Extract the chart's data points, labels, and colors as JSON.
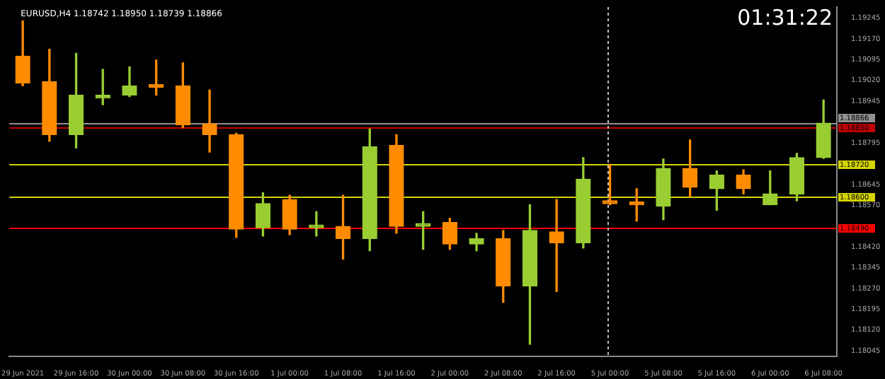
{
  "chart_data": {
    "type": "candlestick",
    "title": "EURUSD,H4 1.18742 1.18950 1.18739 1.18866",
    "annotations": [
      "01:31:22"
    ],
    "categories": [
      "29 Jun 2021",
      null,
      "29 Jun 16:00",
      null,
      "30 Jun 00:00",
      null,
      "30 Jun 08:00",
      null,
      "30 Jun 16:00",
      null,
      "1 Jul 00:00",
      null,
      "1 Jul 08:00",
      null,
      "1 Jul 16:00",
      null,
      "2 Jul 00:00",
      null,
      "2 Jul 08:00",
      null,
      "2 Jul 16:00",
      null,
      "5 Jul 00:00",
      null,
      "5 Jul 08:00",
      null,
      "5 Jul 16:00",
      null,
      "6 Jul 00:00",
      null,
      "6 Jul 08:00"
    ],
    "ohlc": [
      [
        1.19108,
        1.19235,
        1.19001,
        1.19011
      ],
      [
        1.19016,
        1.19133,
        1.18801,
        1.18825
      ],
      [
        1.18825,
        1.19118,
        1.18777,
        1.18967
      ],
      [
        1.18957,
        1.1906,
        1.18933,
        1.18967
      ],
      [
        1.18967,
        1.19069,
        1.18962,
        1.19001
      ],
      [
        1.19001,
        1.19094,
        1.18967,
        1.18996
      ],
      [
        1.19001,
        1.19084,
        1.1885,
        1.1886
      ],
      [
        1.18864,
        1.18986,
        1.18762,
        1.18825
      ],
      [
        1.18825,
        1.1883,
        1.18454,
        1.18484
      ],
      [
        1.18489,
        1.18615,
        1.18459,
        1.18576
      ],
      [
        1.18591,
        1.18606,
        1.18464,
        1.18484
      ],
      [
        1.18489,
        1.18547,
        1.18459,
        1.18494
      ],
      [
        1.18494,
        1.18606,
        1.18376,
        1.1845
      ],
      [
        1.1845,
        1.18845,
        1.18406,
        1.18781
      ],
      [
        1.18786,
        1.18825,
        1.18469,
        1.18494
      ],
      [
        1.18494,
        1.18547,
        1.18411,
        1.18498
      ],
      [
        1.18508,
        1.18523,
        1.18411,
        1.1843
      ],
      [
        1.1843,
        1.18469,
        1.18406,
        1.1845
      ],
      [
        1.1845,
        1.18479,
        1.1822,
        1.18279
      ],
      [
        1.18279,
        1.18572,
        1.18069,
        1.18479
      ],
      [
        1.18474,
        1.18591,
        1.18259,
        1.18435
      ],
      [
        1.18435,
        1.18742,
        1.18416,
        1.18664
      ],
      [
        1.18581,
        1.18718,
        1.18572,
        1.18576
      ],
      [
        1.18576,
        1.1863,
        1.18513,
        1.18572
      ],
      [
        1.18567,
        1.18737,
        1.18518,
        1.18703
      ],
      [
        1.18703,
        1.18806,
        1.18601,
        1.18635
      ],
      [
        1.1863,
        1.18694,
        1.18552,
        1.18679
      ],
      [
        1.18679,
        1.18698,
        1.18611,
        1.1863
      ],
      [
        1.18572,
        1.18694,
        1.18572,
        1.18611
      ],
      [
        1.18611,
        1.18757,
        1.18586,
        1.18742
      ],
      [
        1.18742,
        1.1895,
        1.18739,
        1.18866
      ]
    ],
    "colors": [
      "#ff8c00",
      "#ff8c00",
      "#9acd32",
      "#9acd32",
      "#9acd32",
      "#ff8c00",
      "#ff8c00",
      "#ff8c00",
      "#ff8c00",
      "#9acd32",
      "#ff8c00",
      "#9acd32",
      "#ff8c00",
      "#9acd32",
      "#ff8c00",
      "#9acd32",
      "#ff8c00",
      "#9acd32",
      "#ff8c00",
      "#9acd32",
      "#ff8c00",
      "#9acd32",
      "#ff8c00",
      "#ff8c00",
      "#9acd32",
      "#ff8c00",
      "#9acd32",
      "#ff8c00",
      "#9acd32",
      "#9acd32",
      "#9acd32"
    ],
    "ylim": [
      1.18025,
      1.19285
    ],
    "yticks": [
      1.18045,
      {
        "value": 1.1812,
        "label": "1.18120"
      },
      1.18195,
      {
        "value": 1.1827,
        "label": "1.18270"
      },
      1.18345,
      {
        "value": 1.1842,
        "label": "1.18420"
      },
      {
        "value": 1.1857,
        "label": "1.18570"
      },
      1.18645,
      1.18795,
      1.18945,
      {
        "value": 1.1902,
        "label": "1.19020"
      },
      1.19095,
      {
        "value": 1.1917,
        "label": "1.19170"
      },
      1.19245
    ],
    "ref_lines": [
      {
        "axis": "y",
        "value": 1.18866,
        "label": "1.18866",
        "color": "#909090"
      },
      {
        "axis": "y",
        "value": 1.1885,
        "label": "1.18850",
        "color": "#c00000"
      },
      {
        "axis": "y",
        "value": 1.1872,
        "label": "1.18720",
        "color": "#d4d400"
      },
      {
        "axis": "y",
        "value": 1.186,
        "label": "1.18600",
        "color": "#d4d400"
      },
      {
        "axis": "y",
        "value": 1.1849,
        "label": "1.18490",
        "color": "#ff0000"
      },
      {
        "axis": "x",
        "value": "5 Jul 00:00",
        "color": "#c0c0c0",
        "line_style": "dotted"
      }
    ],
    "grid": false,
    "legend": false
  }
}
